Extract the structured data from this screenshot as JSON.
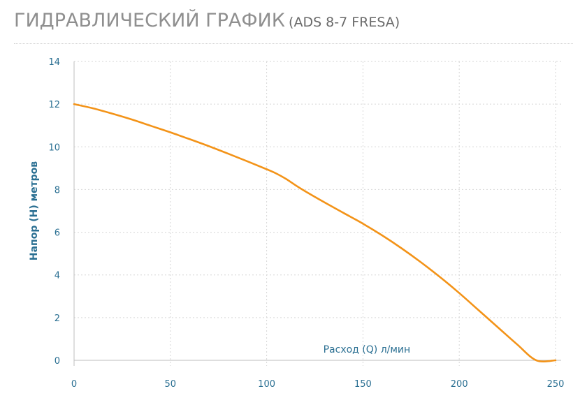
{
  "header": {
    "title": "ГИДРАВЛИЧЕСКИЙ ГРАФИК",
    "model": "(ADS 8-7 FRESA)"
  },
  "colors": {
    "curve": "#f39318",
    "axis_text": "#2a6f92",
    "grid": "#d6d6d6"
  },
  "chart_data": {
    "type": "line",
    "xlabel": "Расход (Q) л/мин",
    "ylabel": "Напор (H) метров",
    "xlim": [
      0,
      250
    ],
    "ylim": [
      0,
      14
    ],
    "x_ticks": [
      0,
      50,
      100,
      150,
      200,
      250
    ],
    "y_ticks": [
      0,
      2,
      4,
      6,
      8,
      10,
      12,
      14
    ],
    "grid": true,
    "series": [
      {
        "x": [
          0,
          10,
          20,
          30,
          40,
          50,
          60,
          70,
          80,
          90,
          100,
          105,
          110,
          115,
          120,
          130,
          140,
          150,
          160,
          170,
          180,
          190,
          200,
          210,
          220,
          230,
          240,
          250
        ],
        "y": [
          12.0,
          11.8,
          11.55,
          11.28,
          10.98,
          10.68,
          10.36,
          10.03,
          9.68,
          9.32,
          8.95,
          8.75,
          8.5,
          8.2,
          7.92,
          7.4,
          6.9,
          6.4,
          5.85,
          5.25,
          4.6,
          3.9,
          3.15,
          2.35,
          1.55,
          0.75,
          0.0,
          0.0
        ]
      }
    ]
  }
}
